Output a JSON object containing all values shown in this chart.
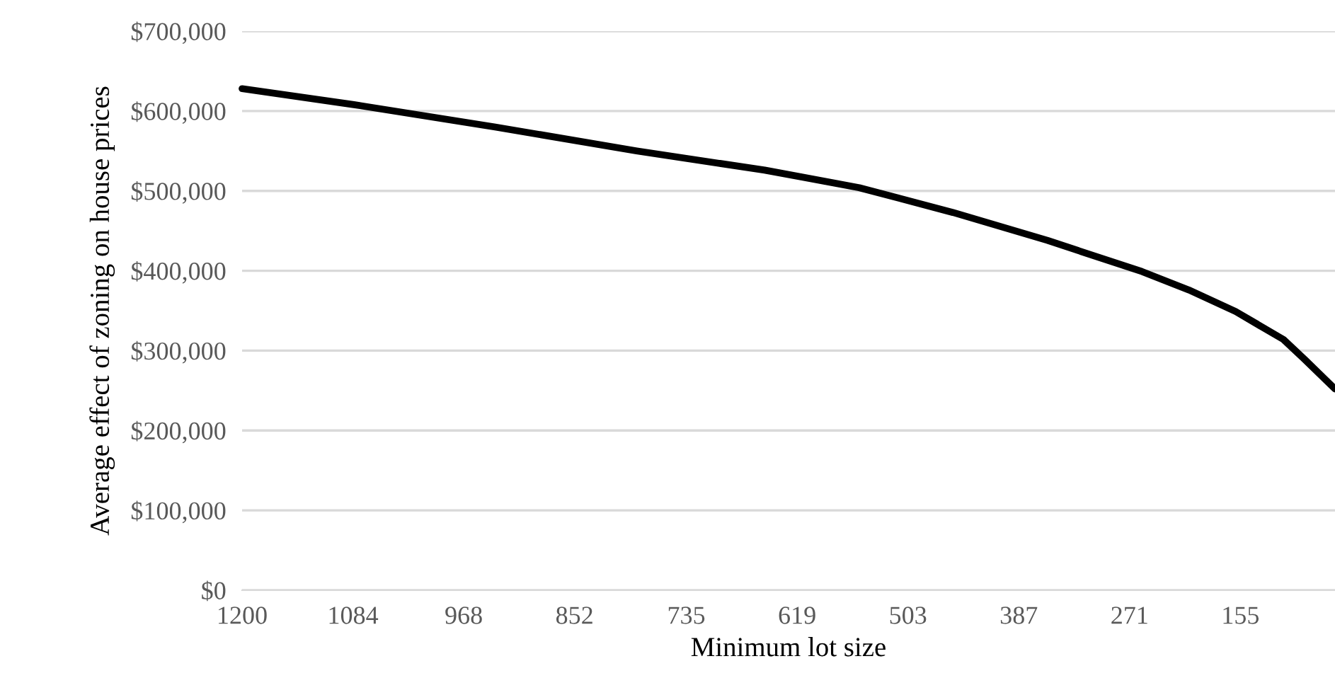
{
  "chart_data": {
    "type": "line",
    "xlabel": "Minimum lot size",
    "ylabel": "Average effect of zoning on house prices",
    "x": [
      1200,
      1083,
      935,
      787,
      653,
      554,
      456,
      357,
      258,
      209,
      160,
      110,
      86,
      56
    ],
    "series": [
      {
        "color": "#000000",
        "values": [
          628000,
          608000,
          580000,
          550000,
          526000,
          504000,
          473000,
          438000,
          399000,
          376000,
          349000,
          314000,
          287000,
          252000
        ]
      }
    ],
    "xlim": [
      1200,
      56
    ],
    "xticks": [
      1200,
      1084,
      968,
      852,
      735,
      619,
      503,
      387,
      271,
      155
    ],
    "ylim": [
      0,
      700000
    ],
    "yticks": [
      {
        "value": 0,
        "label": "$0"
      },
      {
        "value": 100000,
        "label": "$100,000"
      },
      {
        "value": 200000,
        "label": "$200,000"
      },
      {
        "value": 300000,
        "label": "$300,000"
      },
      {
        "value": 400000,
        "label": "$400,000"
      },
      {
        "value": 500000,
        "label": "$500,000"
      },
      {
        "value": 600000,
        "label": "$600,000"
      },
      {
        "value": 700000,
        "label": "$700,000"
      }
    ],
    "grid": "y",
    "marker": "none",
    "line_style": "solid"
  }
}
